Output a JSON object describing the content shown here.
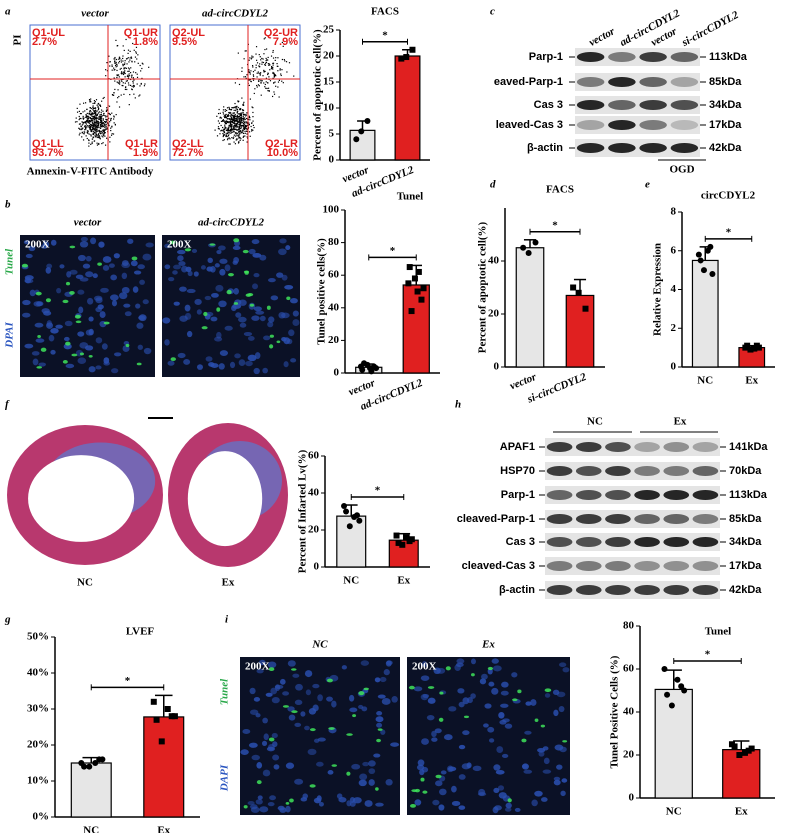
{
  "chart_data": [
    {
      "type": "bar",
      "title": "FACS",
      "y_label": "Percent of apoptotic cell(%)",
      "categories": [
        "vector",
        "ad-circCDYL2"
      ],
      "values": [
        5.7,
        20
      ],
      "errors": [
        1.8,
        1.2
      ],
      "points": [
        [
          4,
          7.5,
          5.5
        ],
        [
          19.5,
          21.2,
          19.8
        ]
      ],
      "colors": [
        "#e6e6e6",
        "#e02020"
      ],
      "ylim": [
        0,
        25
      ],
      "yticks": [
        0,
        5,
        10,
        15,
        20,
        25
      ],
      "annotation": "*"
    },
    {
      "type": "bar",
      "title": "Tunel",
      "y_label": "Tunel positive cells(%)",
      "categories": [
        "vector",
        "ad-circCDYL2"
      ],
      "values": [
        3.5,
        54
      ],
      "errors": [
        2,
        12
      ],
      "points": [
        [
          2,
          4,
          5,
          3,
          6,
          1,
          4,
          3
        ],
        [
          65,
          45,
          58,
          52,
          38,
          62,
          55,
          50
        ]
      ],
      "colors": [
        "#e6e6e6",
        "#e02020"
      ],
      "ylim": [
        0,
        100
      ],
      "yticks": [
        0,
        20,
        40,
        60,
        80,
        100
      ],
      "annotation": "*"
    },
    {
      "type": "bar",
      "title": "FACS",
      "y_label": "Percent of apoptotic cell(%)",
      "categories": [
        "vector",
        "si-circCDYL2"
      ],
      "values": [
        45,
        27
      ],
      "errors": [
        3,
        6
      ],
      "points": [
        [
          45,
          47,
          43
        ],
        [
          30,
          22,
          28
        ]
      ],
      "colors": [
        "#e6e6e6",
        "#e02020"
      ],
      "ylim": [
        0,
        60
      ],
      "yticks": [
        0,
        20,
        40
      ],
      "annotation": "*"
    },
    {
      "type": "bar",
      "title": "circCDYL2",
      "y_label": "Relative Expression",
      "categories": [
        "NC",
        "Ex"
      ],
      "values": [
        5.5,
        1.0
      ],
      "errors": [
        0.7,
        0.1
      ],
      "points": [
        [
          5.8,
          6.2,
          5.0,
          4.8,
          5.5,
          6.0
        ],
        [
          1.0,
          1.1,
          0.9,
          1.0,
          1.1,
          0.95
        ]
      ],
      "colors": [
        "#e6e6e6",
        "#e02020"
      ],
      "ylim": [
        0,
        8
      ],
      "yticks": [
        0,
        2,
        4,
        6,
        8
      ],
      "annotation": "*"
    },
    {
      "type": "bar",
      "y_label": "Percent of Infarted Lv(%)",
      "categories": [
        "NC",
        "Ex"
      ],
      "values": [
        27.5,
        14.5
      ],
      "errors": [
        6,
        3.5
      ],
      "points": [
        [
          33,
          28,
          22,
          25,
          30,
          27
        ],
        [
          17,
          14,
          12,
          15,
          13,
          16
        ]
      ],
      "colors": [
        "#e6e6e6",
        "#e02020"
      ],
      "ylim": [
        0,
        60
      ],
      "yticks": [
        0,
        20,
        40,
        60
      ],
      "annotation": "*"
    },
    {
      "type": "bar",
      "title": "LVEF",
      "categories": [
        "NC",
        "Ex"
      ],
      "values": [
        15,
        27.8
      ],
      "errors": [
        1.5,
        6
      ],
      "points": [
        [
          15,
          16,
          14,
          16,
          14,
          15
        ],
        [
          32,
          28,
          21,
          28,
          27,
          30
        ]
      ],
      "colors": [
        "#e6e6e6",
        "#e02020"
      ],
      "ylim": [
        0,
        50
      ],
      "yticks": [
        {
          "value": 0,
          "label": "0%"
        },
        {
          "value": 10,
          "label": "10%"
        },
        {
          "value": 20,
          "label": "20%"
        },
        {
          "value": 30,
          "label": "30%"
        },
        {
          "value": 40,
          "label": "40%"
        },
        {
          "value": 50,
          "label": "50%"
        }
      ],
      "annotation": "*"
    },
    {
      "type": "bar",
      "title": "Tunel",
      "y_label": "Tunel Positive Cells (%)",
      "categories": [
        "NC",
        "Ex"
      ],
      "values": [
        50.5,
        22.5
      ],
      "errors": [
        9,
        4
      ],
      "points": [
        [
          60,
          52,
          43,
          50,
          48,
          55
        ],
        [
          25,
          22,
          20,
          23,
          24,
          21
        ]
      ],
      "colors": [
        "#e6e6e6",
        "#e02020"
      ],
      "ylim": [
        0,
        80
      ],
      "yticks": [
        0,
        20,
        40,
        60,
        80
      ],
      "annotation": "*"
    }
  ],
  "panel_labels": [
    "a",
    "b",
    "c",
    "d",
    "e",
    "f",
    "g",
    "h",
    "i"
  ],
  "flow_cytometry": {
    "y_label": "PI",
    "x_label": "Annexin-V-FITC Antibody",
    "plots": [
      {
        "title": "vector",
        "quadrants": [
          [
            "Q1-UL",
            "2.7%"
          ],
          [
            "Q1-UR",
            "1.8%"
          ],
          [
            "Q1-LL",
            "93.7%"
          ],
          [
            "Q1-LR",
            "1.9%"
          ]
        ]
      },
      {
        "title": "ad-circCDYL2",
        "quadrants": [
          [
            "Q2-UL",
            "9.5%"
          ],
          [
            "Q2-UR",
            "7.9%"
          ],
          [
            "Q2-LL",
            "72.7%"
          ],
          [
            "Q2-LR",
            "10.0%"
          ]
        ]
      }
    ]
  },
  "blot_c": {
    "lanes": [
      "vector",
      "ad-circCDYL2",
      "vector",
      "si-circCDYL2"
    ],
    "rows": [
      [
        "Parp-1",
        "113kDa"
      ],
      [
        "eaved-Parp-1",
        "85kDa"
      ],
      [
        "Cas 3",
        "34kDa"
      ],
      [
        "leaved-Cas 3",
        "17kDa"
      ],
      [
        "β-actin",
        "42kDa"
      ]
    ],
    "group": "OGD"
  },
  "tunel_b": {
    "images": [
      "vector",
      "ad-circCDYL2"
    ],
    "magnification": [
      "200X",
      "200X"
    ],
    "stains": [
      "Tunel",
      "DPAI"
    ]
  },
  "heart_f": {
    "groups": [
      "NC",
      "Ex"
    ]
  },
  "blot_h": {
    "groups": [
      "NC",
      "Ex"
    ],
    "rows": [
      [
        "APAF1",
        "141kDa"
      ],
      [
        "HSP70",
        "70kDa"
      ],
      [
        "Parp-1",
        "113kDa"
      ],
      [
        "cleaved-Parp-1",
        "85kDa"
      ],
      [
        "Cas 3",
        "34kDa"
      ],
      [
        "cleaved-Cas 3",
        "17kDa"
      ],
      [
        "β-actin",
        "42kDa"
      ]
    ]
  },
  "tunel_i": {
    "images": [
      "NC",
      "Ex"
    ],
    "magnification": [
      "200X",
      "200X"
    ],
    "stains": [
      "Tunel",
      "DAPI"
    ]
  }
}
